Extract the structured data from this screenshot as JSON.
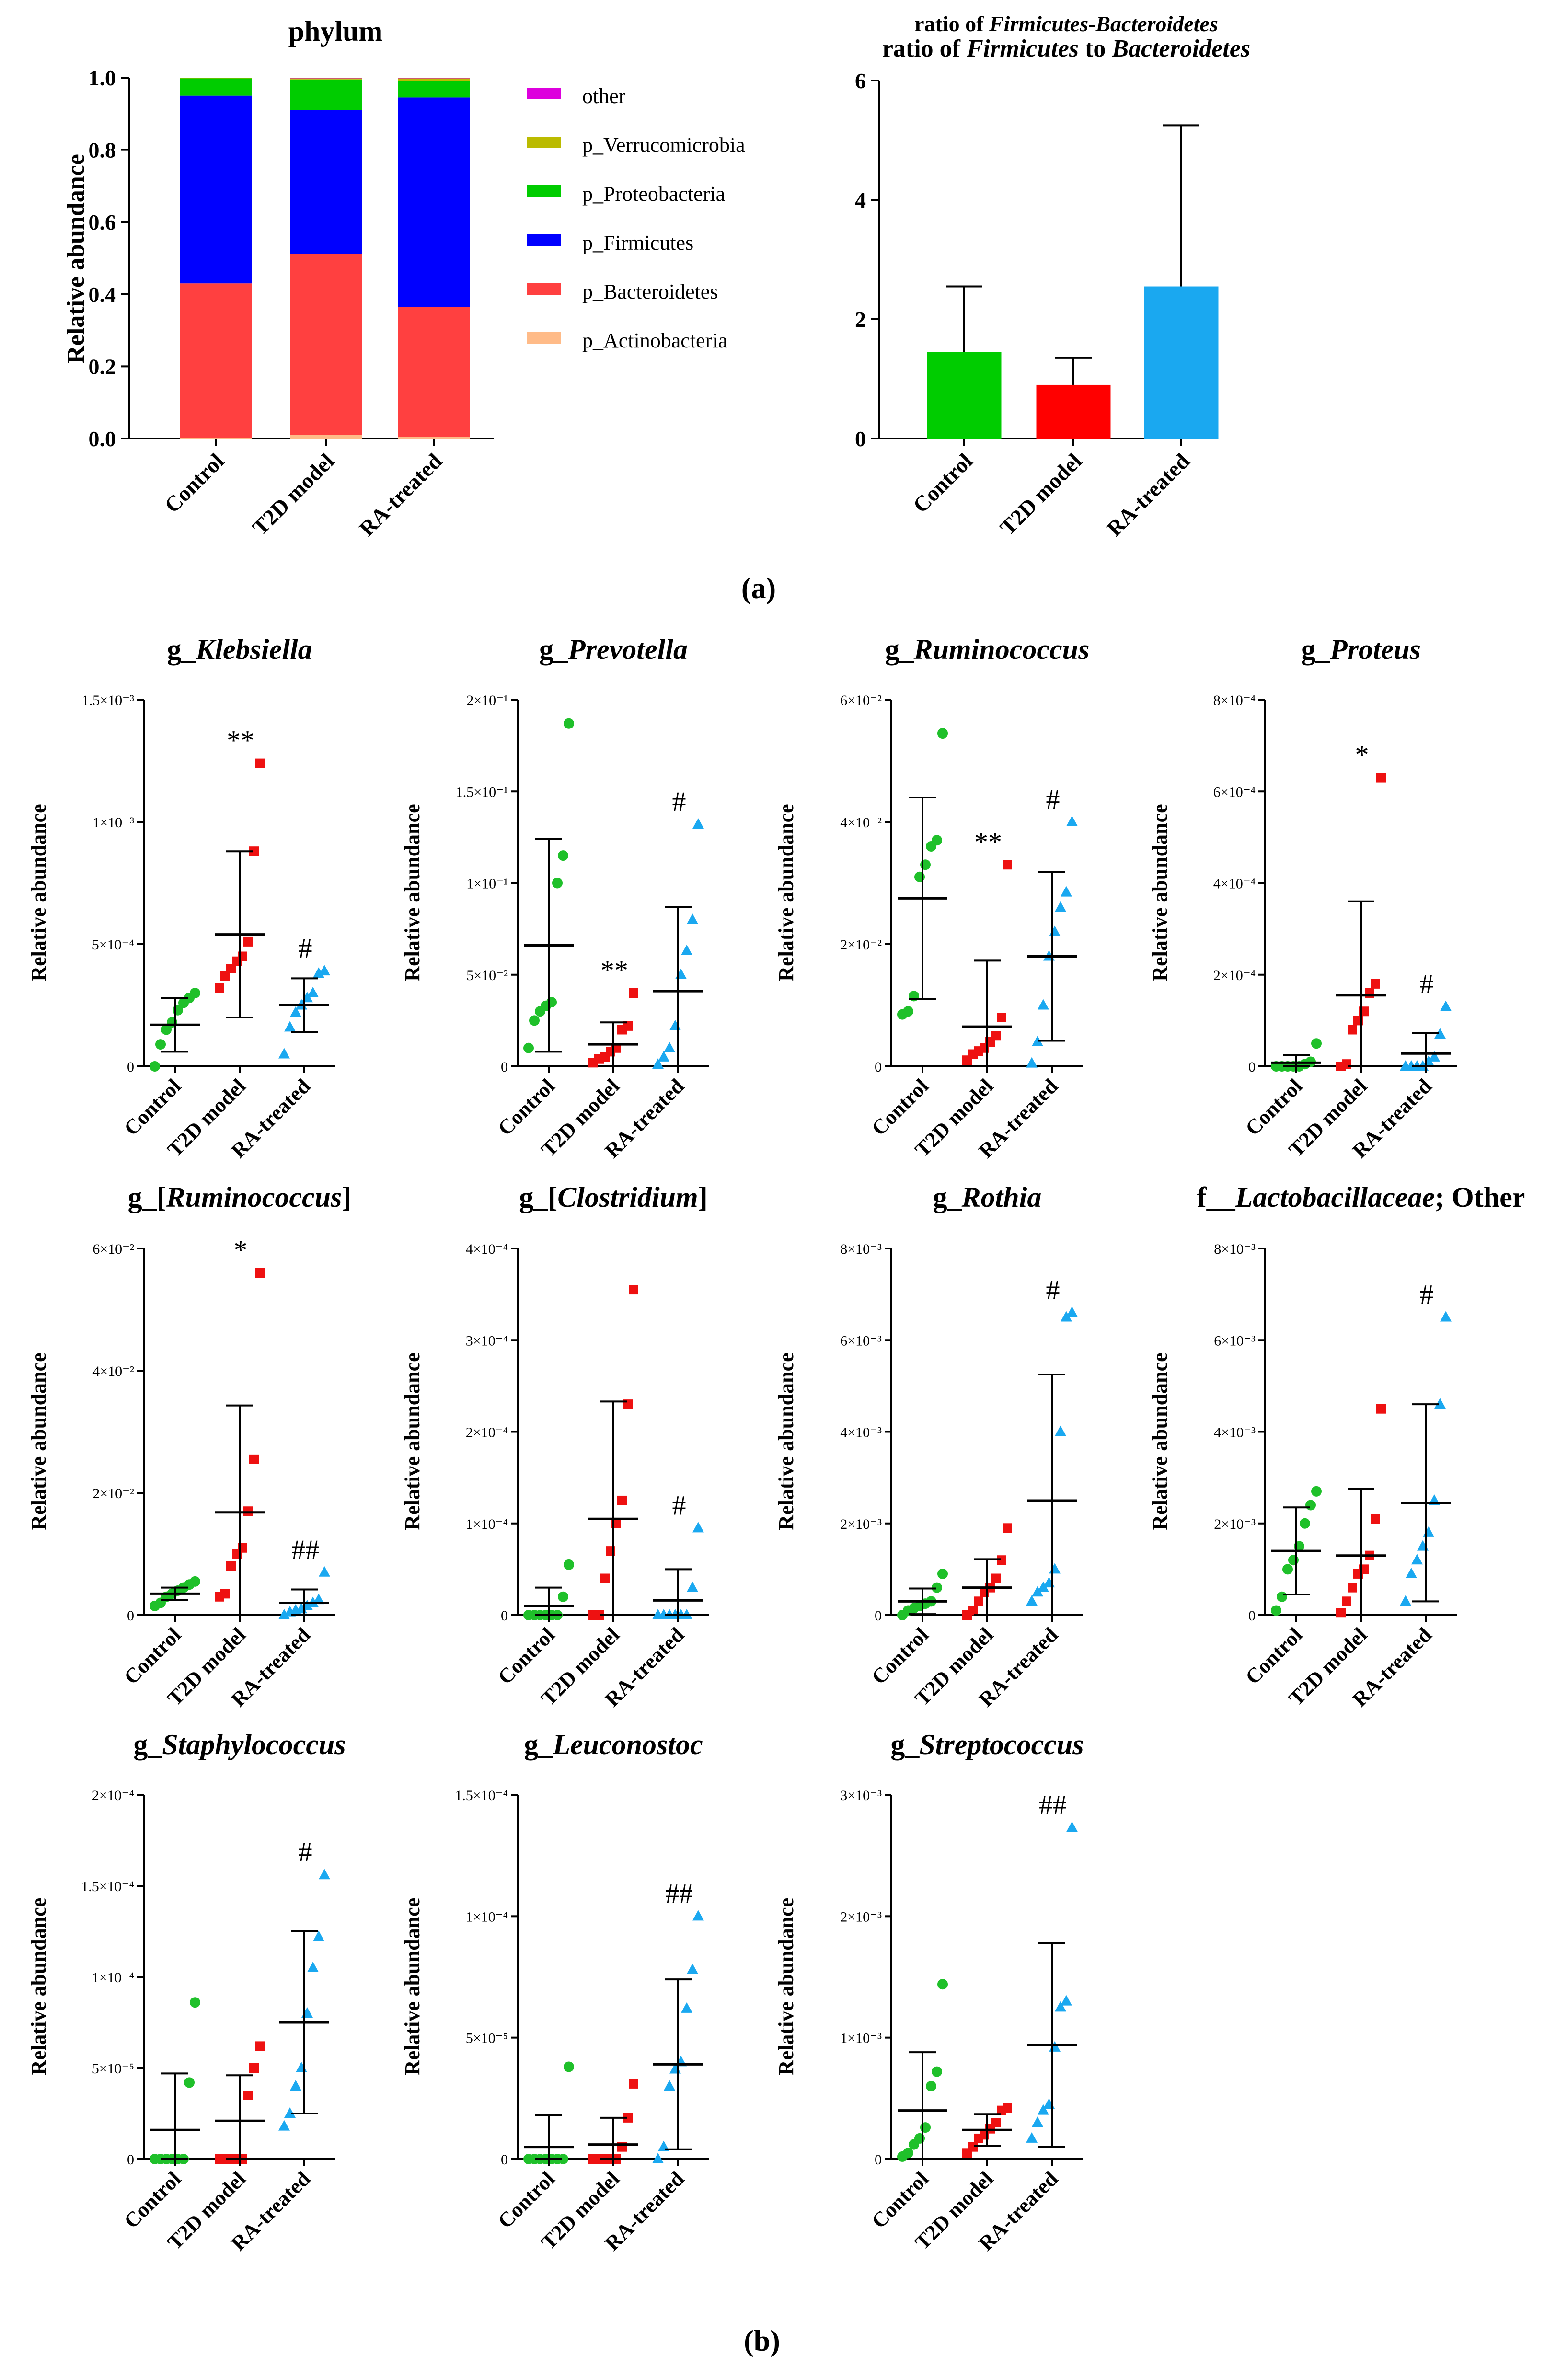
{
  "panel_labels": {
    "a": "(a)",
    "b": "(b)"
  },
  "chart_data": [
    {
      "type": "stacked-bar",
      "title": "phylum",
      "ylabel": "Relative abundance",
      "categories": [
        "Control",
        "T2D model",
        "RA-treated"
      ],
      "yticks": [
        "0.0",
        "0.2",
        "0.4",
        "0.6",
        "0.8",
        "1.0"
      ],
      "ylim": [
        0,
        1
      ],
      "series": [
        {
          "name": "p_Actinobacteria",
          "color": "#FFBB88",
          "values": [
            0.002,
            0.01,
            0.005
          ]
        },
        {
          "name": "p_Bacteroidetes",
          "color": "#FF4040",
          "values": [
            0.428,
            0.5,
            0.36
          ]
        },
        {
          "name": "p_Firmicutes",
          "color": "#0000FF",
          "values": [
            0.52,
            0.4,
            0.58
          ]
        },
        {
          "name": "p_Proteobacteria",
          "color": "#00CC00",
          "values": [
            0.048,
            0.085,
            0.045
          ]
        },
        {
          "name": "p_Verrucomicrobia",
          "color": "#BBBB00",
          "values": [
            0.001,
            0.003,
            0.008
          ]
        },
        {
          "name": "other",
          "color": "#DD00DD",
          "values": [
            0.001,
            0.002,
            0.002
          ]
        }
      ],
      "legend_order": [
        "other",
        "p_Verrucomicrobia",
        "p_Proteobacteria",
        "p_Firmicutes",
        "p_Bacteroidetes",
        "p_Actinobacteria"
      ]
    },
    {
      "type": "bar",
      "title_top": "ratio of Firmicutes-Bacteroidetes",
      "title": "ratio of Firmicutes to Bacteroidetes",
      "categories": [
        "Control",
        "T2D model",
        "RA-treated"
      ],
      "values": [
        1.45,
        0.9,
        2.55
      ],
      "errors": [
        1.1,
        0.45,
        2.7
      ],
      "colors": [
        "#00CC00",
        "#FF0000",
        "#1AA8F0"
      ],
      "yticks": [
        "0",
        "2",
        "4",
        "6"
      ],
      "ylim": [
        0,
        6
      ]
    },
    {
      "type": "scatter",
      "title": "g_Klebsiella",
      "ylabel": "Relative abundance",
      "categories": [
        "Control",
        "T2D model",
        "RA-treated"
      ],
      "ylim": [
        0,
        1.5
      ],
      "yticks": [
        "0",
        "5×10⁻⁴",
        "1×10⁻³",
        "1.5×10⁻³"
      ],
      "groups": [
        {
          "points": [
            0.0,
            0.09,
            0.15,
            0.18,
            0.23,
            0.26,
            0.28,
            0.3
          ],
          "mean": 0.17,
          "sd": 0.11
        },
        {
          "points": [
            0.32,
            0.37,
            0.4,
            0.43,
            0.45,
            0.51,
            0.88,
            1.24
          ],
          "mean": 0.54,
          "sd": 0.34
        },
        {
          "points": [
            0.05,
            0.16,
            0.22,
            0.25,
            0.28,
            0.3,
            0.38,
            0.39
          ],
          "mean": 0.25,
          "sd": 0.11
        }
      ],
      "sig": [
        "",
        "**",
        "#"
      ]
    },
    {
      "type": "scatter",
      "title": "g_Prevotella",
      "ylabel": "Relative abundance",
      "categories": [
        "Control",
        "T2D model",
        "RA-treated"
      ],
      "ylim": [
        0,
        2
      ],
      "yticks": [
        "0",
        "5×10⁻²",
        "1×10⁻¹",
        "1.5×10⁻¹",
        "2×10⁻¹"
      ],
      "groups": [
        {
          "points": [
            0.1,
            0.25,
            0.3,
            0.33,
            0.35,
            1.0,
            1.15,
            1.87
          ],
          "mean": 0.66,
          "sd": 0.58
        },
        {
          "points": [
            0.02,
            0.04,
            0.05,
            0.08,
            0.1,
            0.2,
            0.22,
            0.4
          ],
          "mean": 0.12,
          "sd": 0.12
        },
        {
          "points": [
            0.01,
            0.05,
            0.1,
            0.22,
            0.5,
            0.63,
            0.8,
            1.32
          ],
          "mean": 0.41,
          "sd": 0.46
        }
      ],
      "sig": [
        "",
        "**",
        "#"
      ]
    },
    {
      "type": "scatter",
      "title": "g_Ruminococcus",
      "ylabel": "Relative abundance",
      "categories": [
        "Control",
        "T2D model",
        "RA-treated"
      ],
      "ylim": [
        0,
        6
      ],
      "yticks": [
        "0",
        "2×10⁻²",
        "4×10⁻²",
        "6×10⁻²"
      ],
      "groups": [
        {
          "points": [
            0.85,
            0.9,
            1.15,
            3.1,
            3.3,
            3.6,
            3.7,
            5.45
          ],
          "mean": 2.75,
          "sd": 1.65
        },
        {
          "points": [
            0.1,
            0.2,
            0.25,
            0.3,
            0.4,
            0.5,
            0.8,
            3.3
          ],
          "mean": 0.65,
          "sd": 1.08
        },
        {
          "points": [
            0.05,
            0.4,
            1.0,
            1.8,
            2.2,
            2.6,
            2.85,
            4.0
          ],
          "mean": 1.8,
          "sd": 1.38
        }
      ],
      "sig": [
        "",
        "**",
        "#"
      ]
    },
    {
      "type": "scatter",
      "title": "g_Proteus",
      "ylabel": "Relative abundance",
      "categories": [
        "Control",
        "T2D model",
        "RA-treated"
      ],
      "ylim": [
        0,
        8
      ],
      "yticks": [
        "0",
        "2×10⁻⁴",
        "4×10⁻⁴",
        "6×10⁻⁴",
        "8×10⁻⁴"
      ],
      "groups": [
        {
          "points": [
            0.0,
            0.0,
            0.0,
            0.0,
            0.0,
            0.05,
            0.1,
            0.5
          ],
          "mean": 0.08,
          "sd": 0.17
        },
        {
          "points": [
            0.0,
            0.05,
            0.8,
            1.0,
            1.2,
            1.6,
            1.8,
            6.3
          ],
          "mean": 1.55,
          "sd": 2.05
        },
        {
          "points": [
            0.0,
            0.0,
            0.0,
            0.0,
            0.1,
            0.2,
            0.7,
            1.3
          ],
          "mean": 0.28,
          "sd": 0.45
        }
      ],
      "sig": [
        "",
        "*",
        "#"
      ]
    },
    {
      "type": "scatter",
      "title": "g_[Ruminococcus]",
      "ylabel": "Relative abundance",
      "categories": [
        "Control",
        "T2D model",
        "RA-treated"
      ],
      "ylim": [
        0,
        6
      ],
      "yticks": [
        "0",
        "2×10⁻²",
        "4×10⁻²",
        "6×10⁻²"
      ],
      "groups": [
        {
          "points": [
            0.15,
            0.2,
            0.3,
            0.35,
            0.4,
            0.45,
            0.5,
            0.55
          ],
          "mean": 0.35,
          "sd": 0.1
        },
        {
          "points": [
            0.3,
            0.35,
            0.8,
            1.0,
            1.1,
            1.7,
            2.55,
            5.6
          ],
          "mean": 1.68,
          "sd": 1.75
        },
        {
          "points": [
            0.0,
            0.05,
            0.08,
            0.1,
            0.15,
            0.2,
            0.25,
            0.7
          ],
          "mean": 0.2,
          "sd": 0.22
        }
      ],
      "sig": [
        "",
        "*",
        "##"
      ]
    },
    {
      "type": "scatter",
      "title": "g_[Clostridium]",
      "ylabel": "Relative abundance",
      "categories": [
        "Control",
        "T2D model",
        "RA-treated"
      ],
      "ylim": [
        0,
        4
      ],
      "yticks": [
        "0",
        "1×10⁻⁴",
        "2×10⁻⁴",
        "3×10⁻⁴",
        "4×10⁻⁴"
      ],
      "groups": [
        {
          "points": [
            0.0,
            0.0,
            0.0,
            0.0,
            0.0,
            0.0,
            0.2,
            0.55
          ],
          "mean": 0.1,
          "sd": 0.2
        },
        {
          "points": [
            0.0,
            0.0,
            0.4,
            0.7,
            1.0,
            1.25,
            2.3,
            3.55
          ],
          "mean": 1.05,
          "sd": 1.28
        },
        {
          "points": [
            0.0,
            0.0,
            0.0,
            0.0,
            0.0,
            0.0,
            0.3,
            0.95
          ],
          "mean": 0.16,
          "sd": 0.34
        }
      ],
      "sig": [
        "",
        "",
        "#"
      ]
    },
    {
      "type": "scatter",
      "title": "g_Rothia",
      "ylabel": "Relative abundance",
      "categories": [
        "Control",
        "T2D model",
        "RA-treated"
      ],
      "ylim": [
        0,
        8
      ],
      "yticks": [
        "0",
        "2×10⁻³",
        "4×10⁻³",
        "6×10⁻³",
        "8×10⁻³"
      ],
      "groups": [
        {
          "points": [
            0.0,
            0.1,
            0.15,
            0.2,
            0.25,
            0.3,
            0.6,
            0.9
          ],
          "mean": 0.3,
          "sd": 0.28
        },
        {
          "points": [
            0.0,
            0.1,
            0.3,
            0.5,
            0.6,
            0.8,
            1.2,
            1.9
          ],
          "mean": 0.6,
          "sd": 0.62
        },
        {
          "points": [
            0.3,
            0.5,
            0.6,
            0.7,
            1.0,
            4.0,
            6.5,
            6.6
          ],
          "mean": 2.5,
          "sd": 2.75
        }
      ],
      "sig": [
        "",
        "",
        "#"
      ]
    },
    {
      "type": "scatter",
      "title": "f__Lactobacillaceae; Other",
      "ylabel": "Relative abundance",
      "categories": [
        "Control",
        "T2D model",
        "RA-treated"
      ],
      "ylim": [
        0,
        8
      ],
      "yticks": [
        "0",
        "2×10⁻³",
        "4×10⁻³",
        "6×10⁻³",
        "8×10⁻³"
      ],
      "groups": [
        {
          "points": [
            0.1,
            0.4,
            1.0,
            1.2,
            1.5,
            2.0,
            2.4,
            2.7
          ],
          "mean": 1.4,
          "sd": 0.95
        },
        {
          "points": [
            0.05,
            0.3,
            0.6,
            0.9,
            1.0,
            1.3,
            2.1,
            4.5
          ],
          "mean": 1.3,
          "sd": 1.45
        },
        {
          "points": [
            0.3,
            0.9,
            1.2,
            1.5,
            1.8,
            2.5,
            4.6,
            6.5
          ],
          "mean": 2.45,
          "sd": 2.15
        }
      ],
      "sig": [
        "",
        "",
        "#"
      ]
    },
    {
      "type": "scatter",
      "title": "g_Staphylococcus",
      "ylabel": "Relative abundance",
      "categories": [
        "Control",
        "T2D model",
        "RA-treated"
      ],
      "ylim": [
        0,
        2
      ],
      "yticks": [
        "0",
        "5×10⁻⁵",
        "1×10⁻⁴",
        "1.5×10⁻⁴",
        "2×10⁻⁴"
      ],
      "groups": [
        {
          "points": [
            0.0,
            0.0,
            0.0,
            0.0,
            0.0,
            0.0,
            0.42,
            0.86
          ],
          "mean": 0.16,
          "sd": 0.31
        },
        {
          "points": [
            0.0,
            0.0,
            0.0,
            0.0,
            0.0,
            0.35,
            0.5,
            0.62
          ],
          "mean": 0.21,
          "sd": 0.25
        },
        {
          "points": [
            0.18,
            0.25,
            0.4,
            0.5,
            0.8,
            1.05,
            1.22,
            1.56
          ],
          "mean": 0.75,
          "sd": 0.5
        }
      ],
      "sig": [
        "",
        "",
        "#"
      ]
    },
    {
      "type": "scatter",
      "title": "g_Leuconostoc",
      "ylabel": "Relative abundance",
      "categories": [
        "Control",
        "T2D model",
        "RA-treated"
      ],
      "ylim": [
        0,
        1.5
      ],
      "yticks": [
        "0",
        "5×10⁻⁵",
        "1×10⁻⁴",
        "1.5×10⁻⁴"
      ],
      "groups": [
        {
          "points": [
            0.0,
            0.0,
            0.0,
            0.0,
            0.0,
            0.0,
            0.0,
            0.38
          ],
          "mean": 0.05,
          "sd": 0.13
        },
        {
          "points": [
            0.0,
            0.0,
            0.0,
            0.0,
            0.0,
            0.05,
            0.17,
            0.31
          ],
          "mean": 0.06,
          "sd": 0.11
        },
        {
          "points": [
            0.0,
            0.05,
            0.3,
            0.37,
            0.4,
            0.62,
            0.78,
            1.0
          ],
          "mean": 0.39,
          "sd": 0.35
        }
      ],
      "sig": [
        "",
        "",
        "##"
      ]
    },
    {
      "type": "scatter",
      "title": "g_Streptococcus",
      "ylabel": "Relative abundance",
      "categories": [
        "Control",
        "T2D model",
        "RA-treated"
      ],
      "ylim": [
        0,
        3
      ],
      "yticks": [
        "0",
        "1×10⁻³",
        "2×10⁻³",
        "3×10⁻³"
      ],
      "groups": [
        {
          "points": [
            0.02,
            0.05,
            0.12,
            0.17,
            0.26,
            0.6,
            0.72,
            1.44
          ],
          "mean": 0.4,
          "sd": 0.48
        },
        {
          "points": [
            0.05,
            0.1,
            0.17,
            0.2,
            0.25,
            0.3,
            0.4,
            0.42
          ],
          "mean": 0.24,
          "sd": 0.13
        },
        {
          "points": [
            0.17,
            0.3,
            0.4,
            0.45,
            0.92,
            1.25,
            1.3,
            2.73
          ],
          "mean": 0.94,
          "sd": 0.84
        }
      ],
      "sig": [
        "",
        "",
        "##"
      ]
    }
  ]
}
